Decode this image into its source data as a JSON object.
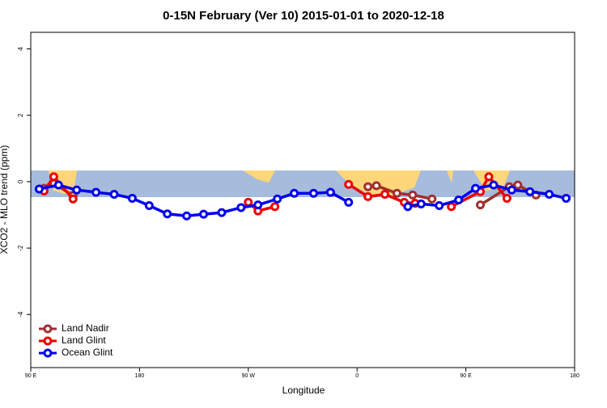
{
  "chart_data": {
    "type": "line",
    "title": "0-15N February (Ver 10)   2015-01-01 to 2020-12-18",
    "x_label": "Longitude",
    "y_label": "XCO2 - MLO trend (ppm)",
    "xlim": [
      90,
      540
    ],
    "ylim": [
      -5.6,
      4.5
    ],
    "xticks": [
      {
        "value": 90,
        "label": "90 E"
      },
      {
        "value": 180,
        "label": "180"
      },
      {
        "value": 270,
        "label": "90 W"
      },
      {
        "value": 360,
        "label": "0"
      },
      {
        "value": 450,
        "label": "90 E"
      },
      {
        "value": 540,
        "label": "180"
      }
    ],
    "yticks": [
      -4,
      -2,
      0,
      2,
      4
    ],
    "legend": "bottom-left",
    "series": [
      {
        "name": "Land Nadir",
        "color": "#a03030",
        "x": [
          101,
          109,
          125,
          null,
          369,
          376,
          393,
          406,
          422,
          null,
          462,
          486,
          493,
          508
        ],
        "values": [
          -0.2,
          -0.05,
          -0.42,
          null,
          -0.15,
          -0.12,
          -0.35,
          -0.4,
          -0.52,
          null,
          -0.7,
          -0.15,
          -0.1,
          -0.4
        ]
      },
      {
        "name": "Land Glint",
        "color": "#ee0000",
        "x": [
          101,
          109,
          125,
          null,
          270,
          278,
          292,
          null,
          353,
          369,
          383,
          399,
          408,
          null,
          438,
          462,
          469,
          484
        ],
        "values": [
          -0.28,
          0.15,
          -0.52,
          null,
          -0.62,
          -0.88,
          -0.75,
          null,
          -0.08,
          -0.45,
          -0.38,
          -0.62,
          -0.65,
          null,
          -0.75,
          -0.3,
          0.15,
          -0.5
        ]
      },
      {
        "name": "Ocean Glint",
        "color": "#0000ee",
        "x": [
          97,
          113,
          128,
          144,
          159,
          174,
          188,
          203,
          219,
          233,
          248,
          264,
          278,
          294,
          308,
          324,
          338,
          353,
          null,
          402,
          413,
          428,
          444,
          458,
          473,
          488,
          503,
          519,
          533
        ],
        "values": [
          -0.22,
          -0.1,
          -0.25,
          -0.32,
          -0.38,
          -0.5,
          -0.72,
          -0.97,
          -1.03,
          -0.98,
          -0.93,
          -0.78,
          -0.7,
          -0.52,
          -0.35,
          -0.35,
          -0.32,
          -0.62,
          null,
          -0.75,
          -0.67,
          -0.72,
          -0.55,
          -0.2,
          -0.1,
          -0.25,
          -0.3,
          -0.38,
          -0.5
        ]
      }
    ]
  }
}
